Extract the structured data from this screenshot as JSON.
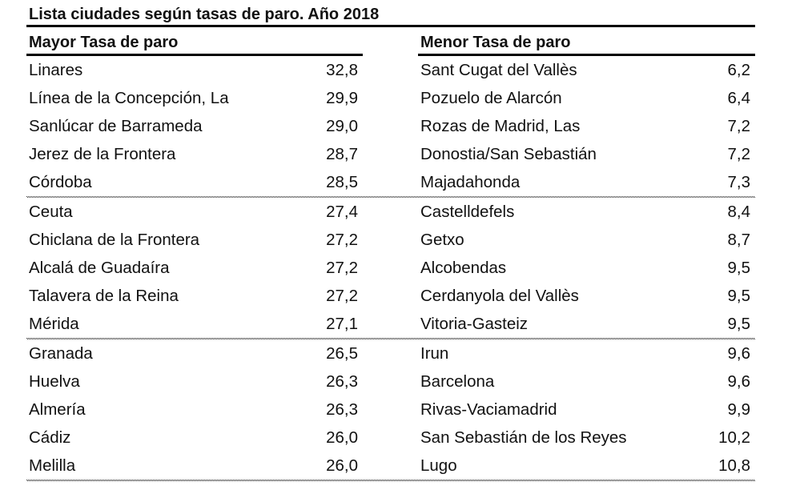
{
  "page": {
    "title": "Lista ciudades según tasas de paro. Año 2018"
  },
  "table": {
    "group_size": 5,
    "left": {
      "header": "Mayor Tasa de paro",
      "rows": [
        {
          "city": "Linares",
          "value": "32,8"
        },
        {
          "city": "Línea de la Concepción, La",
          "value": "29,9"
        },
        {
          "city": "Sanlúcar de Barrameda",
          "value": "29,0"
        },
        {
          "city": "Jerez de la Frontera",
          "value": "28,7"
        },
        {
          "city": "Córdoba",
          "value": "28,5"
        },
        {
          "city": "Ceuta",
          "value": "27,4"
        },
        {
          "city": "Chiclana de la Frontera",
          "value": "27,2"
        },
        {
          "city": "Alcalá de Guadaíra",
          "value": "27,2"
        },
        {
          "city": "Talavera de la Reina",
          "value": "27,2"
        },
        {
          "city": "Mérida",
          "value": "27,1"
        },
        {
          "city": "Granada",
          "value": "26,5"
        },
        {
          "city": "Huelva",
          "value": "26,3"
        },
        {
          "city": "Almería",
          "value": "26,3"
        },
        {
          "city": "Cádiz",
          "value": "26,0"
        },
        {
          "city": "Melilla",
          "value": "26,0"
        }
      ]
    },
    "right": {
      "header": "Menor Tasa de paro",
      "rows": [
        {
          "city": "Sant Cugat del Vallès",
          "value": "6,2"
        },
        {
          "city": "Pozuelo de Alarcón",
          "value": "6,4"
        },
        {
          "city": "Rozas de Madrid, Las",
          "value": "7,2"
        },
        {
          "city": "Donostia/San Sebastián",
          "value": "7,2"
        },
        {
          "city": "Majadahonda",
          "value": "7,3"
        },
        {
          "city": "Castelldefels",
          "value": "8,4"
        },
        {
          "city": "Getxo",
          "value": "8,7"
        },
        {
          "city": "Alcobendas",
          "value": "9,5"
        },
        {
          "city": "Cerdanyola del Vallès",
          "value": "9,5"
        },
        {
          "city": "Vitoria-Gasteiz",
          "value": "9,5"
        },
        {
          "city": "Irun",
          "value": "9,6"
        },
        {
          "city": "Barcelona",
          "value": "9,6"
        },
        {
          "city": "Rivas-Vaciamadrid",
          "value": "9,9"
        },
        {
          "city": "San Sebastián de los Reyes",
          "value": "10,2"
        },
        {
          "city": "Lugo",
          "value": "10,8"
        }
      ]
    }
  },
  "colors": {
    "background": "#ffffff",
    "text": "#111111",
    "rule": "#000000",
    "dotted_rule": "#3c3c3c"
  }
}
